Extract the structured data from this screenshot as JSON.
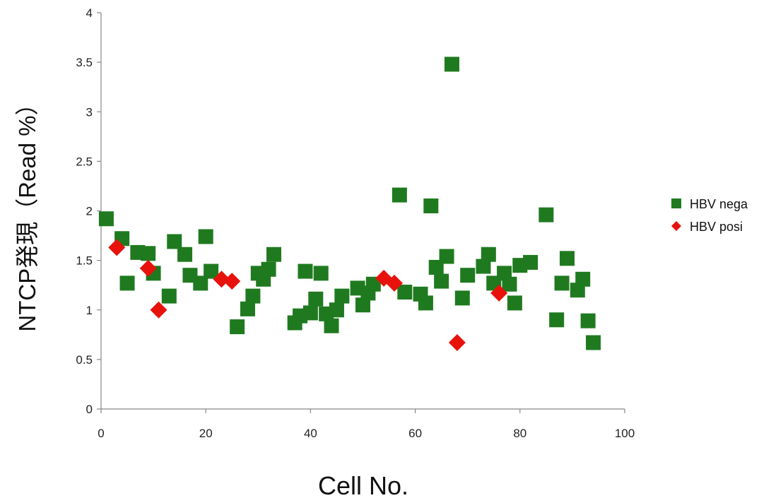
{
  "chart_data": {
    "type": "scatter",
    "xlabel": "Cell No.",
    "ylabel": "NTCP発現（Read %）",
    "xlim": [
      0,
      100
    ],
    "ylim": [
      0,
      4
    ],
    "xticks": [
      "0",
      "20",
      "40",
      "60",
      "80",
      "100"
    ],
    "yticks": [
      "0",
      "0.5",
      "1",
      "1.5",
      "2",
      "2.5",
      "3",
      "3.5",
      "4"
    ],
    "grid": false,
    "legend_position": "right",
    "series": [
      {
        "name": "HBV nega",
        "marker": "square",
        "color": "#1f7a1f",
        "points": [
          [
            1,
            1.92
          ],
          [
            4,
            1.72
          ],
          [
            5,
            1.27
          ],
          [
            7,
            1.58
          ],
          [
            9,
            1.57
          ],
          [
            10,
            1.37
          ],
          [
            13,
            1.14
          ],
          [
            14,
            1.69
          ],
          [
            16,
            1.56
          ],
          [
            17,
            1.35
          ],
          [
            19,
            1.27
          ],
          [
            20,
            1.74
          ],
          [
            21,
            1.39
          ],
          [
            26,
            0.83
          ],
          [
            28,
            1.01
          ],
          [
            29,
            1.14
          ],
          [
            30,
            1.37
          ],
          [
            31,
            1.31
          ],
          [
            32,
            1.41
          ],
          [
            33,
            1.56
          ],
          [
            37,
            0.87
          ],
          [
            38,
            0.94
          ],
          [
            39,
            1.39
          ],
          [
            40,
            0.97
          ],
          [
            41,
            1.11
          ],
          [
            42,
            1.37
          ],
          [
            43,
            0.96
          ],
          [
            44,
            0.84
          ],
          [
            45,
            1.0
          ],
          [
            46,
            1.14
          ],
          [
            49,
            1.22
          ],
          [
            50,
            1.05
          ],
          [
            51,
            1.17
          ],
          [
            52,
            1.26
          ],
          [
            57,
            2.16
          ],
          [
            58,
            1.18
          ],
          [
            61,
            1.16
          ],
          [
            62,
            1.07
          ],
          [
            63,
            2.05
          ],
          [
            64,
            1.43
          ],
          [
            65,
            1.29
          ],
          [
            66,
            1.54
          ],
          [
            67,
            3.48
          ],
          [
            69,
            1.12
          ],
          [
            70,
            1.35
          ],
          [
            73,
            1.44
          ],
          [
            74,
            1.56
          ],
          [
            75,
            1.27
          ],
          [
            77,
            1.37
          ],
          [
            78,
            1.26
          ],
          [
            79,
            1.07
          ],
          [
            80,
            1.45
          ],
          [
            82,
            1.48
          ],
          [
            85,
            1.96
          ],
          [
            87,
            0.9
          ],
          [
            88,
            1.27
          ],
          [
            89,
            1.52
          ],
          [
            91,
            1.2
          ],
          [
            92,
            1.31
          ],
          [
            93,
            0.89
          ],
          [
            94,
            0.67
          ]
        ]
      },
      {
        "name": "HBV posi",
        "marker": "diamond",
        "color": "#e8120c",
        "points": [
          [
            3,
            1.63
          ],
          [
            9,
            1.42
          ],
          [
            11,
            1.0
          ],
          [
            23,
            1.31
          ],
          [
            25,
            1.29
          ],
          [
            54,
            1.32
          ],
          [
            56,
            1.27
          ],
          [
            68,
            0.67
          ],
          [
            76,
            1.17
          ]
        ]
      }
    ]
  }
}
